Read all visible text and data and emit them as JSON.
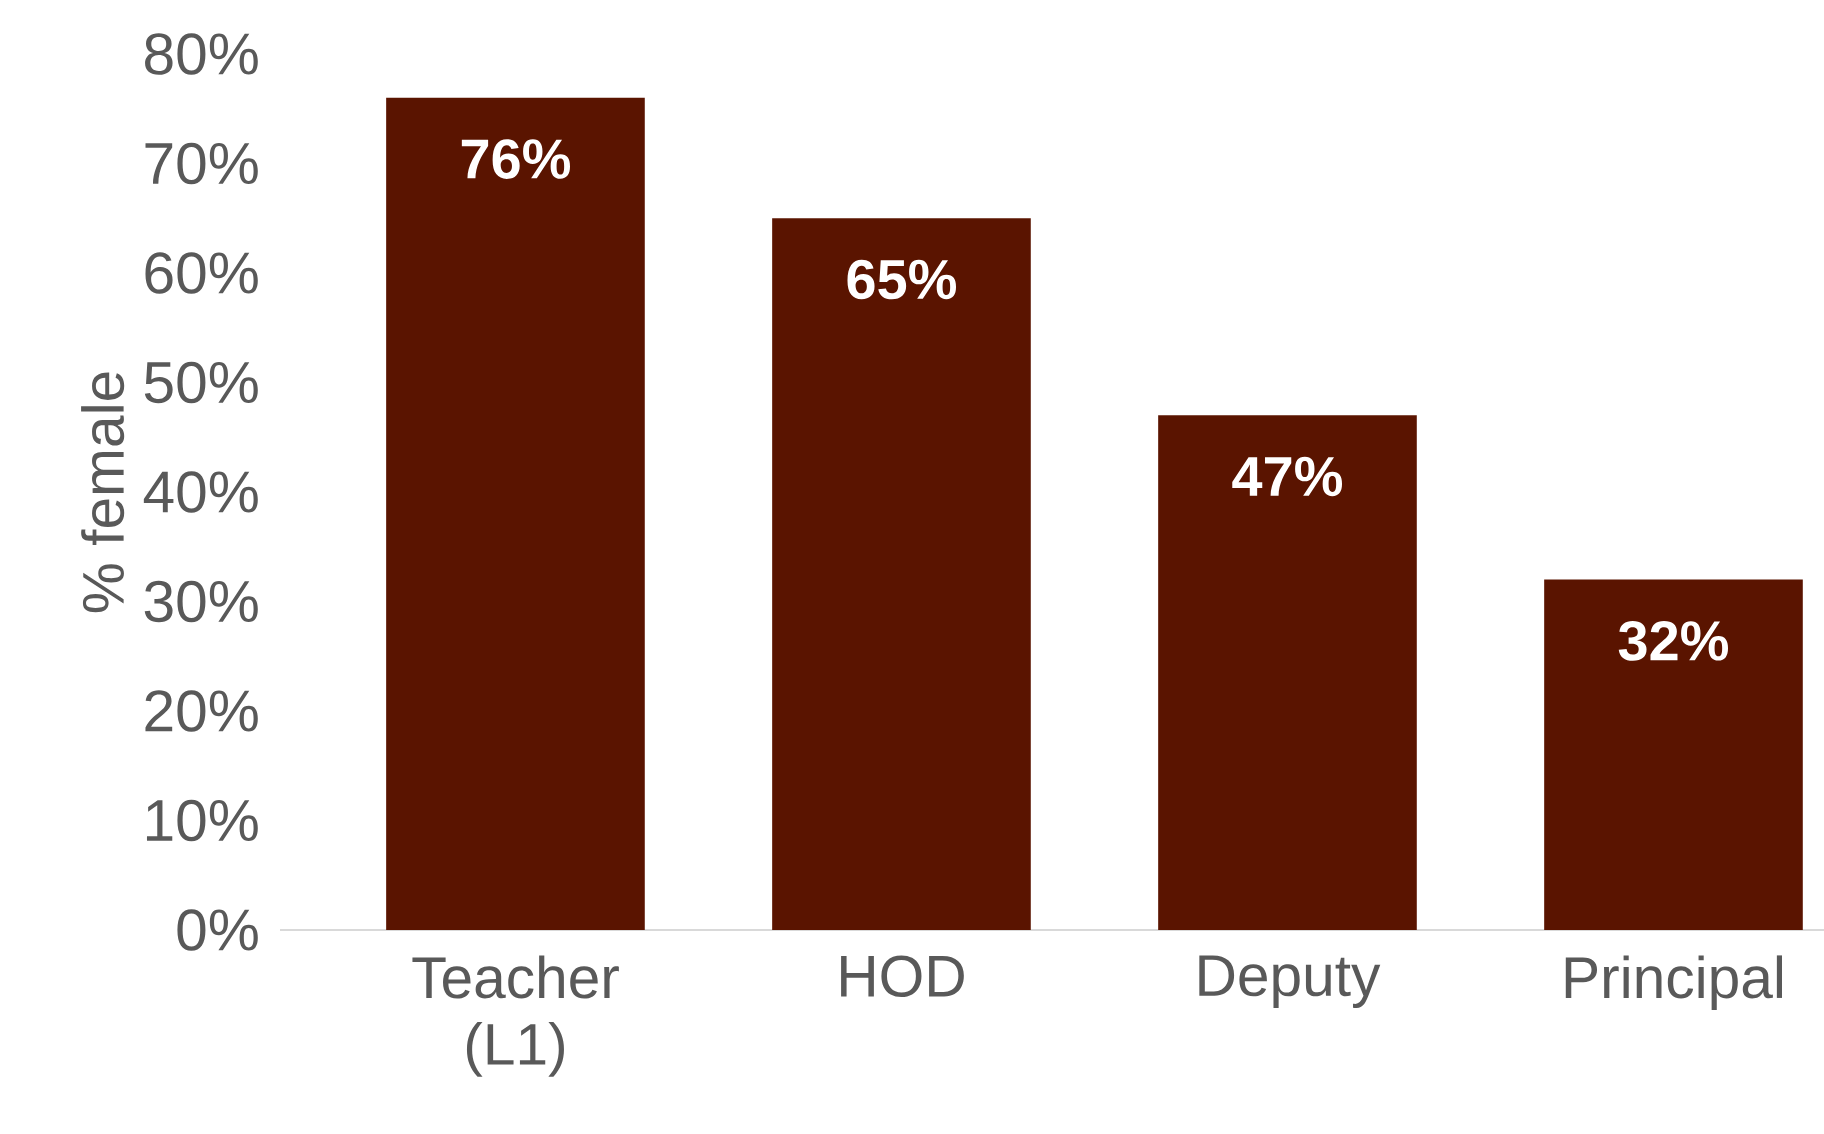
{
  "chart_data": {
    "type": "bar",
    "ylabel": "% female",
    "categories": [
      "Teacher (L1)",
      "HOD",
      "Deputy",
      "Principal"
    ],
    "values": [
      76,
      65,
      47,
      32
    ],
    "value_labels": [
      "76%",
      "65%",
      "47%",
      "32%"
    ],
    "color": "#5a1400",
    "ylim": [
      0,
      80
    ],
    "yticks": [
      {
        "value": 0,
        "label": "0%"
      },
      {
        "value": 10,
        "label": "10%"
      },
      {
        "value": 20,
        "label": "20%"
      },
      {
        "value": 30,
        "label": "30%"
      },
      {
        "value": 40,
        "label": "40%"
      },
      {
        "value": 50,
        "label": "50%"
      },
      {
        "value": 60,
        "label": "60%"
      },
      {
        "value": 70,
        "label": "70%"
      },
      {
        "value": 80,
        "label": "80%"
      }
    ],
    "grid": false
  }
}
